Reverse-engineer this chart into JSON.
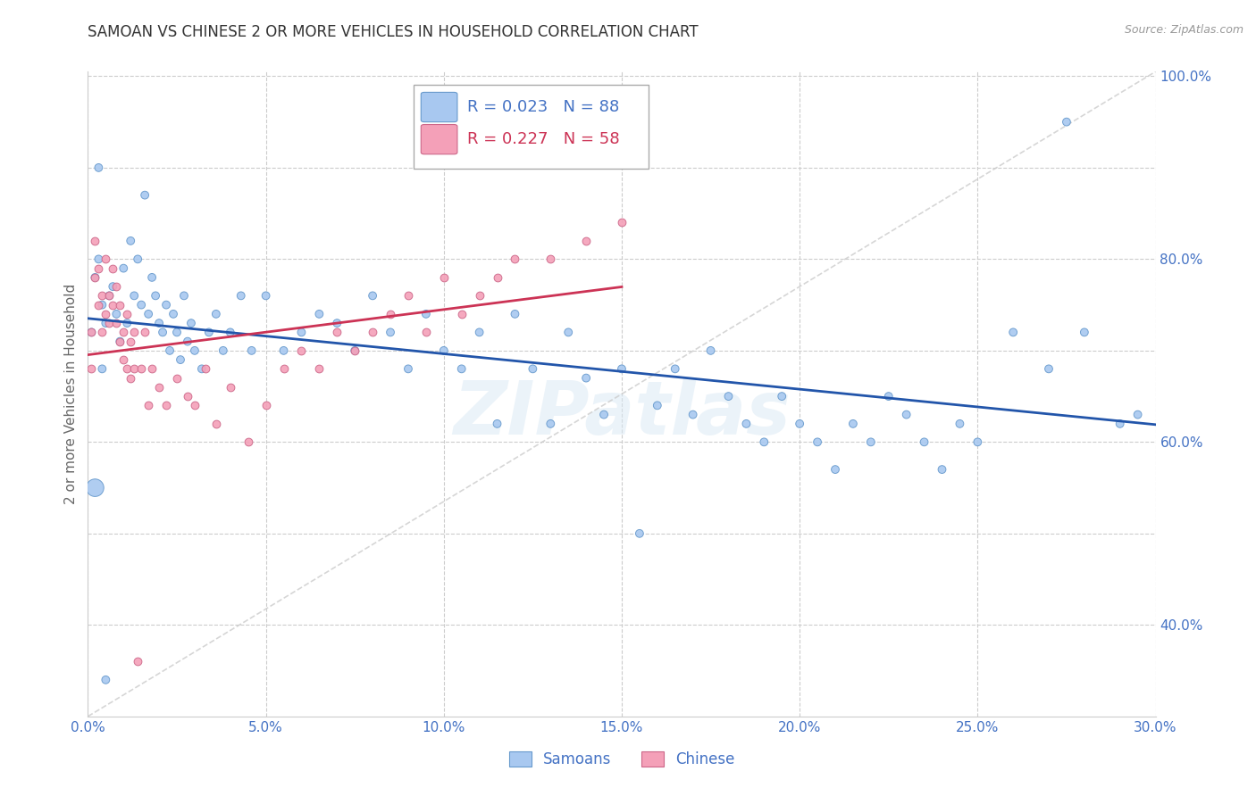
{
  "title": "SAMOAN VS CHINESE 2 OR MORE VEHICLES IN HOUSEHOLD CORRELATION CHART",
  "source": "Source: ZipAtlas.com",
  "ylabel": "2 or more Vehicles in Household",
  "x_min": 0.0,
  "x_max": 0.3,
  "y_min": 0.3,
  "y_max": 1.005,
  "x_ticks": [
    0.0,
    0.05,
    0.1,
    0.15,
    0.2,
    0.25,
    0.3
  ],
  "x_tick_labels": [
    "0.0%",
    "5.0%",
    "10.0%",
    "15.0%",
    "20.0%",
    "25.0%",
    "30.0%"
  ],
  "y_ticks": [
    0.4,
    0.6,
    0.8,
    1.0
  ],
  "y_tick_labels": [
    "40.0%",
    "60.0%",
    "80.0%",
    "100.0%"
  ],
  "y_grid_ticks": [
    0.4,
    0.5,
    0.6,
    0.7,
    0.8,
    0.9,
    1.0
  ],
  "samoans_color": "#A8C8F0",
  "chinese_color": "#F4A0B8",
  "samoans_edge": "#6699CC",
  "chinese_edge": "#CC6688",
  "trend_samoans_color": "#2255AA",
  "trend_chinese_color": "#CC3355",
  "diagonal_color": "#CCCCCC",
  "watermark": "ZIPatlas",
  "legend_R_samoans": "R = 0.023",
  "legend_N_samoans": "N = 88",
  "legend_R_chinese": "R = 0.227",
  "legend_N_chinese": "N = 58",
  "samoans_color_legend": "#A8C8F0",
  "chinese_color_legend": "#F4A0B8",
  "axis_color": "#4472C4",
  "tick_color": "#4472C4",
  "grid_color": "#CCCCCC",
  "background_color": "#FFFFFF",
  "samoans_x": [
    0.001,
    0.002,
    0.003,
    0.004,
    0.005,
    0.006,
    0.007,
    0.008,
    0.009,
    0.01,
    0.011,
    0.012,
    0.013,
    0.014,
    0.015,
    0.016,
    0.017,
    0.018,
    0.019,
    0.02,
    0.021,
    0.022,
    0.023,
    0.024,
    0.025,
    0.026,
    0.027,
    0.028,
    0.029,
    0.03,
    0.032,
    0.034,
    0.036,
    0.038,
    0.04,
    0.043,
    0.046,
    0.05,
    0.055,
    0.06,
    0.065,
    0.07,
    0.075,
    0.08,
    0.085,
    0.09,
    0.095,
    0.1,
    0.105,
    0.11,
    0.115,
    0.12,
    0.125,
    0.13,
    0.135,
    0.14,
    0.145,
    0.15,
    0.155,
    0.16,
    0.165,
    0.17,
    0.175,
    0.18,
    0.185,
    0.19,
    0.195,
    0.2,
    0.205,
    0.21,
    0.215,
    0.22,
    0.225,
    0.23,
    0.235,
    0.24,
    0.245,
    0.25,
    0.26,
    0.27,
    0.275,
    0.28,
    0.29,
    0.295,
    0.002,
    0.003,
    0.004,
    0.005
  ],
  "samoans_y": [
    0.72,
    0.78,
    0.8,
    0.75,
    0.73,
    0.76,
    0.77,
    0.74,
    0.71,
    0.79,
    0.73,
    0.82,
    0.76,
    0.8,
    0.75,
    0.87,
    0.74,
    0.78,
    0.76,
    0.73,
    0.72,
    0.75,
    0.7,
    0.74,
    0.72,
    0.69,
    0.76,
    0.71,
    0.73,
    0.7,
    0.68,
    0.72,
    0.74,
    0.7,
    0.72,
    0.76,
    0.7,
    0.76,
    0.7,
    0.72,
    0.74,
    0.73,
    0.7,
    0.76,
    0.72,
    0.68,
    0.74,
    0.7,
    0.68,
    0.72,
    0.62,
    0.74,
    0.68,
    0.62,
    0.72,
    0.67,
    0.63,
    0.68,
    0.5,
    0.64,
    0.68,
    0.63,
    0.7,
    0.65,
    0.62,
    0.6,
    0.65,
    0.62,
    0.6,
    0.57,
    0.62,
    0.6,
    0.65,
    0.63,
    0.6,
    0.57,
    0.62,
    0.6,
    0.72,
    0.68,
    0.95,
    0.72,
    0.62,
    0.63,
    0.55,
    0.9,
    0.68,
    0.34
  ],
  "samoans_size": [
    40,
    40,
    40,
    40,
    40,
    40,
    40,
    40,
    40,
    40,
    40,
    40,
    40,
    40,
    40,
    40,
    40,
    40,
    40,
    40,
    40,
    40,
    40,
    40,
    40,
    40,
    40,
    40,
    40,
    40,
    40,
    40,
    40,
    40,
    40,
    40,
    40,
    40,
    40,
    40,
    40,
    40,
    40,
    40,
    40,
    40,
    40,
    40,
    40,
    40,
    40,
    40,
    40,
    40,
    40,
    40,
    40,
    40,
    40,
    40,
    40,
    40,
    40,
    40,
    40,
    40,
    40,
    40,
    40,
    40,
    40,
    40,
    40,
    40,
    40,
    40,
    40,
    40,
    40,
    40,
    40,
    40,
    40,
    40,
    200,
    40,
    40,
    40
  ],
  "chinese_x": [
    0.001,
    0.001,
    0.002,
    0.002,
    0.003,
    0.003,
    0.004,
    0.004,
    0.005,
    0.005,
    0.006,
    0.006,
    0.007,
    0.007,
    0.008,
    0.008,
    0.009,
    0.009,
    0.01,
    0.01,
    0.011,
    0.011,
    0.012,
    0.012,
    0.013,
    0.013,
    0.014,
    0.015,
    0.016,
    0.017,
    0.018,
    0.02,
    0.022,
    0.025,
    0.028,
    0.03,
    0.033,
    0.036,
    0.04,
    0.045,
    0.05,
    0.055,
    0.06,
    0.065,
    0.07,
    0.075,
    0.08,
    0.085,
    0.09,
    0.095,
    0.1,
    0.105,
    0.11,
    0.115,
    0.12,
    0.13,
    0.14,
    0.15
  ],
  "chinese_y": [
    0.68,
    0.72,
    0.78,
    0.82,
    0.75,
    0.79,
    0.72,
    0.76,
    0.74,
    0.8,
    0.76,
    0.73,
    0.79,
    0.75,
    0.73,
    0.77,
    0.71,
    0.75,
    0.69,
    0.72,
    0.68,
    0.74,
    0.71,
    0.67,
    0.72,
    0.68,
    0.36,
    0.68,
    0.72,
    0.64,
    0.68,
    0.66,
    0.64,
    0.67,
    0.65,
    0.64,
    0.68,
    0.62,
    0.66,
    0.6,
    0.64,
    0.68,
    0.7,
    0.68,
    0.72,
    0.7,
    0.72,
    0.74,
    0.76,
    0.72,
    0.78,
    0.74,
    0.76,
    0.78,
    0.8,
    0.8,
    0.82,
    0.84
  ]
}
